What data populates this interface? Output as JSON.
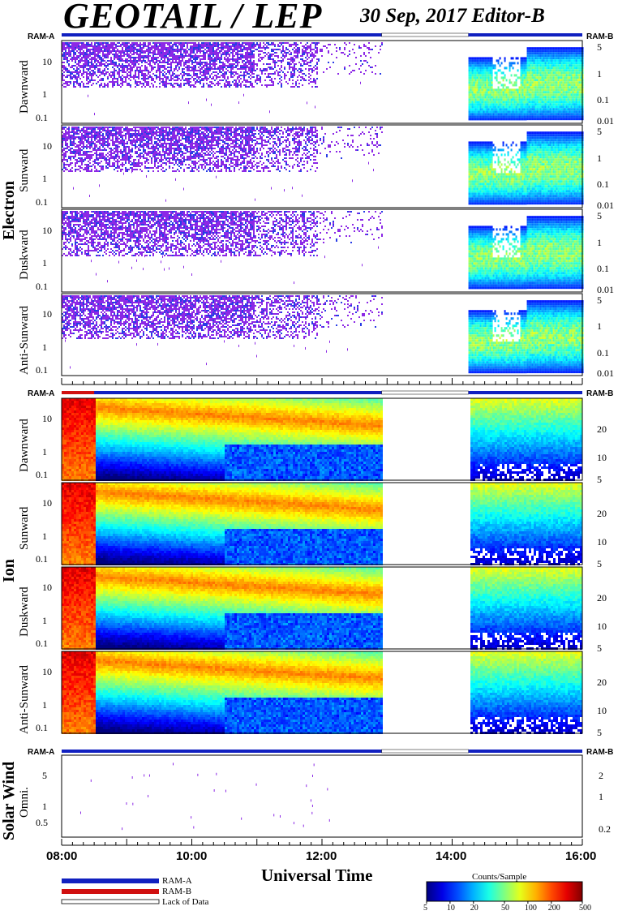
{
  "title": "GEOTAIL / LEP",
  "date_editor": "30 Sep, 2017   Editor-B",
  "ram_labels": {
    "left": "RAM-A",
    "right": "RAM-B"
  },
  "groups": {
    "electron": "Electron",
    "ion": "Ion",
    "solar_wind": "Solar Wind"
  },
  "panels": {
    "e_dawn": "Dawnward",
    "e_sun": "Sunward",
    "e_dusk": "Duskward",
    "e_anti": "Anti-Sunward",
    "i_dawn": "Dawnward",
    "i_sun": "Sunward",
    "i_dusk": "Duskward",
    "i_anti": "Anti-Sunward",
    "sw": "Omni."
  },
  "axes": {
    "electron_left_ticks": [
      "10",
      "1",
      "0.1"
    ],
    "electron_right_ticks": [
      "5",
      "1",
      "0.1",
      "0.01"
    ],
    "ion_left_ticks": [
      "10",
      "1",
      "0.1"
    ],
    "ion_right_ticks": [
      "20",
      "10",
      "5"
    ],
    "sw_left_ticks": [
      "5",
      "1",
      "0.5"
    ],
    "sw_right_ticks": [
      "2",
      "1",
      "0.2"
    ],
    "time_ticks": [
      "08:00",
      "10:00",
      "12:00",
      "14:00",
      "16:00"
    ],
    "xlabel": "Universal Time"
  },
  "legend": {
    "items": [
      {
        "label": "RAM-A",
        "color": "#1020c0"
      },
      {
        "label": "RAM-B",
        "color": "#d01010"
      },
      {
        "label": "Lack of Data",
        "color": "#ffffff"
      }
    ],
    "colorbar_title": "Counts/Sample",
    "colorbar_ticks": [
      "5",
      "10",
      "20",
      "50",
      "100",
      "200",
      "500"
    ]
  },
  "chart_data": {
    "type": "heatmap",
    "title": "GEOTAIL / LEP",
    "x_range": [
      "08:00",
      "16:00"
    ],
    "data_gap": [
      "12:55",
      "14:15"
    ],
    "colorbar_range": [
      5,
      500
    ],
    "colorbar_scale": "log",
    "ram_b_interval_ion": [
      "08:00",
      "08:30"
    ],
    "panels": [
      {
        "group": "Electron",
        "name": "Dawnward",
        "ylim": [
          0.1,
          40
        ]
      },
      {
        "group": "Electron",
        "name": "Sunward",
        "ylim": [
          0.1,
          40
        ]
      },
      {
        "group": "Electron",
        "name": "Duskward",
        "ylim": [
          0.1,
          40
        ]
      },
      {
        "group": "Electron",
        "name": "Anti-Sunward",
        "ylim": [
          0.1,
          40
        ]
      },
      {
        "group": "Ion",
        "name": "Dawnward",
        "ylim": [
          0.1,
          40
        ]
      },
      {
        "group": "Ion",
        "name": "Sunward",
        "ylim": [
          0.1,
          40
        ]
      },
      {
        "group": "Ion",
        "name": "Duskward",
        "ylim": [
          0.1,
          40
        ]
      },
      {
        "group": "Ion",
        "name": "Anti-Sunward",
        "ylim": [
          0.1,
          40
        ]
      },
      {
        "group": "Solar Wind",
        "name": "Omni.",
        "ylim": [
          0.3,
          8
        ]
      }
    ]
  }
}
